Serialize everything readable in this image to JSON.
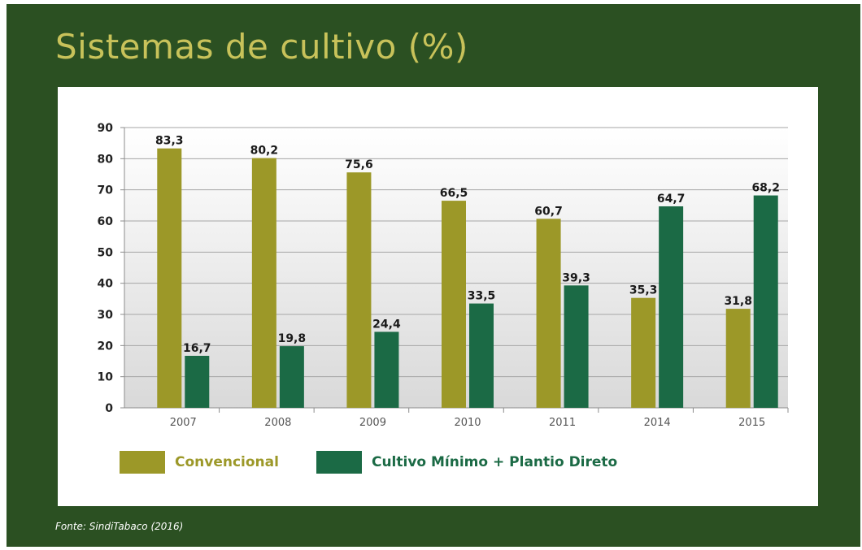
{
  "source": "Fonte: SindiTabaco (2016)",
  "chart_data": {
    "type": "bar",
    "title": "Sistemas de cultivo (%)",
    "categories": [
      "2007",
      "2008",
      "2009",
      "2010",
      "2011",
      "2014",
      "2015"
    ],
    "series": [
      {
        "name": "Convencional",
        "color": "#9c9828",
        "values": [
          83.3,
          80.2,
          75.6,
          66.5,
          60.7,
          35.3,
          31.8
        ],
        "labels": [
          "83,3",
          "80,2",
          "75,6",
          "66,5",
          "60,7",
          "35,3",
          "31,8"
        ]
      },
      {
        "name": "Cultivo Mínimo + Plantio Direto",
        "color": "#1b6a45",
        "values": [
          16.7,
          19.8,
          24.4,
          33.5,
          39.3,
          64.7,
          68.2
        ],
        "labels": [
          "16,7",
          "19,8",
          "24,4",
          "33,5",
          "39,3",
          "64,7",
          "68,2"
        ]
      }
    ],
    "ylim": [
      0,
      90
    ],
    "yticks": [
      0,
      10,
      20,
      30,
      40,
      50,
      60,
      70,
      80,
      90
    ],
    "grid": true,
    "legend_position": "bottom-left"
  }
}
